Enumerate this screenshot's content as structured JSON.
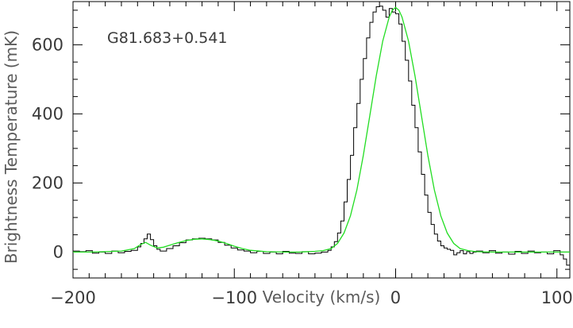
{
  "chart_data": {
    "type": "line",
    "title": "",
    "annotation": "G81.683+0.541",
    "xlabel": "Velocity (km/s)",
    "ylabel": "Brightness Temperature (mK)",
    "xlim": [
      -200,
      108
    ],
    "ylim": [
      -75,
      725
    ],
    "xticks": [
      -200,
      -100,
      0,
      100
    ],
    "xtick_labels": [
      "−200",
      "−100",
      "0",
      "100"
    ],
    "yticks": [
      0,
      200,
      400,
      600
    ],
    "ytick_labels": [
      "0",
      "200",
      "400",
      "600"
    ],
    "grid": false,
    "series": [
      {
        "style": "step",
        "color": "#000000",
        "x": [
          -200,
          -196,
          -192,
          -188,
          -184,
          -180,
          -176,
          -172,
          -168,
          -164,
          -160,
          -158,
          -156,
          -154,
          -152,
          -150,
          -148,
          -146,
          -142,
          -138,
          -134,
          -130,
          -126,
          -122,
          -118,
          -114,
          -110,
          -106,
          -102,
          -98,
          -94,
          -90,
          -86,
          -82,
          -78,
          -74,
          -70,
          -66,
          -62,
          -58,
          -54,
          -50,
          -46,
          -42,
          -40,
          -38,
          -36,
          -34,
          -32,
          -30,
          -28,
          -26,
          -24,
          -22,
          -20,
          -18,
          -16,
          -14,
          -12,
          -10,
          -8,
          -6,
          -4,
          -2,
          0,
          2,
          4,
          6,
          8,
          10,
          12,
          14,
          16,
          18,
          20,
          22,
          24,
          26,
          28,
          30,
          32,
          34,
          36,
          38,
          40,
          42,
          44,
          46,
          48,
          50,
          54,
          58,
          62,
          66,
          70,
          74,
          78,
          82,
          86,
          90,
          94,
          98,
          102,
          104,
          106
        ],
        "y": [
          3,
          1,
          4,
          -3,
          0,
          -4,
          3,
          -2,
          2,
          5,
          15,
          25,
          38,
          52,
          36,
          18,
          8,
          3,
          10,
          18,
          27,
          35,
          38,
          40,
          38,
          35,
          28,
          20,
          12,
          6,
          3,
          -2,
          2,
          -4,
          0,
          -5,
          2,
          -3,
          -4,
          1,
          -5,
          -3,
          0,
          5,
          15,
          30,
          55,
          90,
          145,
          210,
          280,
          360,
          430,
          500,
          560,
          620,
          665,
          695,
          710,
          712,
          700,
          680,
          705,
          695,
          690,
          660,
          610,
          555,
          495,
          425,
          360,
          290,
          225,
          165,
          115,
          80,
          52,
          32,
          18,
          12,
          8,
          5,
          -8,
          -2,
          4,
          -5,
          1,
          -4,
          0,
          3,
          -2,
          4,
          -3,
          0,
          -6,
          2,
          -4,
          3,
          -2,
          0,
          -5,
          4,
          -8,
          -20,
          -38
        ]
      },
      {
        "style": "line",
        "color": "#22dd22",
        "x": [
          -200,
          -190,
          -180,
          -170,
          -162,
          -158,
          -155,
          -152,
          -148,
          -144,
          -140,
          -135,
          -130,
          -125,
          -120,
          -115,
          -110,
          -105,
          -100,
          -95,
          -90,
          -80,
          -70,
          -60,
          -50,
          -45,
          -40,
          -36,
          -32,
          -28,
          -24,
          -20,
          -16,
          -12,
          -8,
          -4,
          -2,
          0,
          2,
          4,
          8,
          12,
          16,
          20,
          24,
          28,
          32,
          36,
          40,
          45,
          50,
          60,
          70,
          80,
          90,
          100,
          108
        ],
        "y": [
          0,
          0,
          1,
          3,
          10,
          22,
          28,
          20,
          12,
          14,
          20,
          27,
          33,
          37,
          38,
          36,
          32,
          25,
          17,
          10,
          5,
          1,
          0,
          0,
          2,
          4,
          10,
          25,
          55,
          105,
          180,
          280,
          395,
          510,
          610,
          680,
          700,
          708,
          700,
          680,
          610,
          510,
          395,
          280,
          180,
          105,
          55,
          25,
          10,
          4,
          1,
          0,
          0,
          0,
          0,
          0,
          0
        ]
      }
    ]
  }
}
